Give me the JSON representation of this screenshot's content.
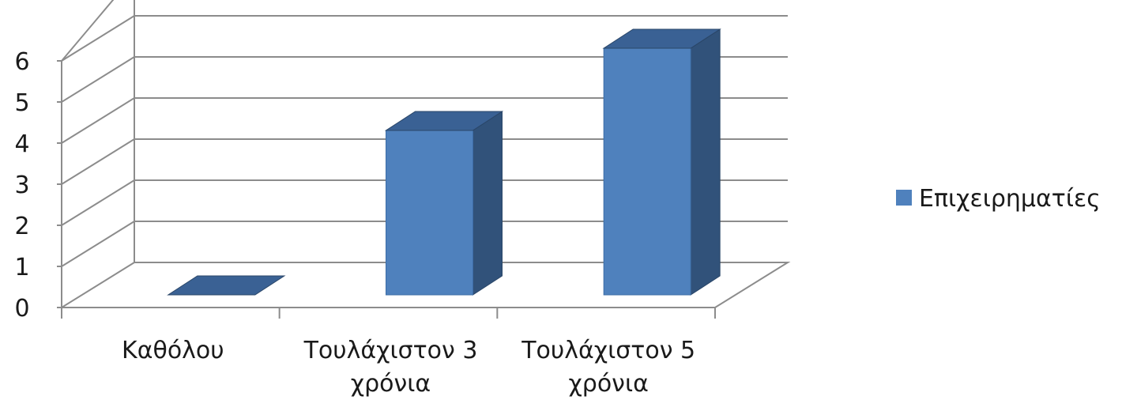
{
  "chart_data": {
    "type": "bar",
    "style": "3d-column",
    "categories": [
      "Καθόλου",
      "Τουλάχιστον 3 χρόνια",
      "Τουλάχιστον 5 χρόνια"
    ],
    "category_lines": [
      [
        "Καθόλου"
      ],
      [
        "Τουλάχιστον 3",
        "χρόνια"
      ],
      [
        "Τουλάχιστον 5",
        "χρόνια"
      ]
    ],
    "series": [
      {
        "name": "Επιχειρηματίες",
        "values": [
          0,
          4,
          6
        ],
        "color": "#4f81bd"
      }
    ],
    "yticks": [
      0,
      1,
      2,
      3,
      4,
      5,
      6
    ],
    "ylim": [
      0,
      6
    ],
    "grid": true,
    "legend": "right"
  }
}
